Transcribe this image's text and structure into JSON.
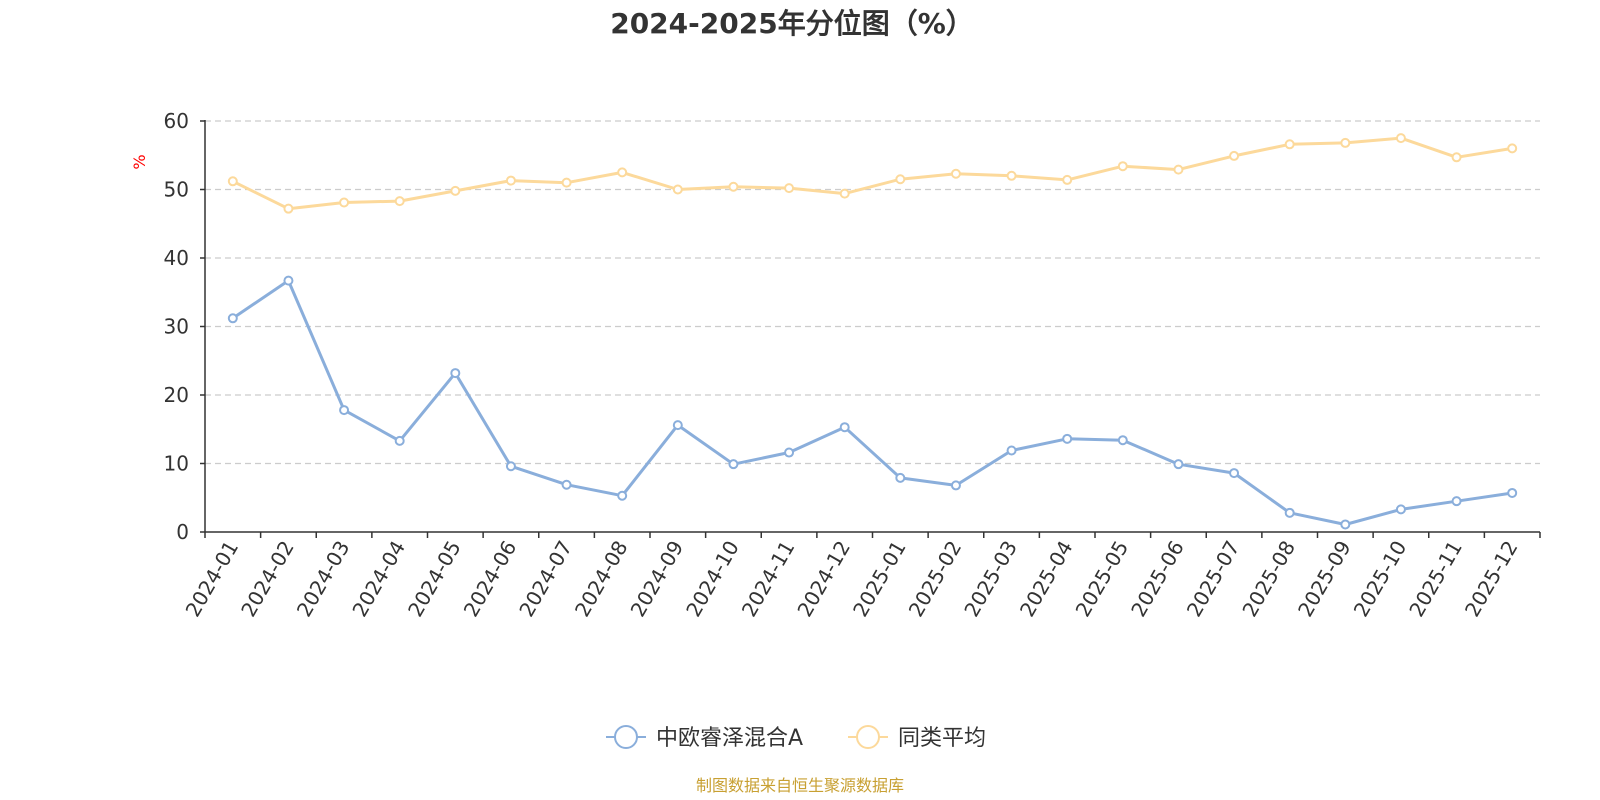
{
  "colors": {
    "series1": "#8aaedb",
    "series2": "#fcd99b",
    "axis": "#333333",
    "grid": "#cccccc",
    "unit": "#ff0000",
    "source": "#c8a032"
  },
  "chart_data": {
    "type": "line",
    "title": "2024-2025年分位图（%）",
    "ylabel": "%",
    "ylim": [
      0,
      60
    ],
    "yticks": [
      0,
      10,
      20,
      30,
      40,
      50,
      60
    ],
    "grid": true,
    "legend_position": "bottom-center",
    "categories": [
      "2024-01",
      "2024-02",
      "2024-03",
      "2024-04",
      "2024-05",
      "2024-06",
      "2024-07",
      "2024-08",
      "2024-09",
      "2024-10",
      "2024-11",
      "2024-12",
      "2025-01",
      "2025-02",
      "2025-03",
      "2025-04",
      "2025-05",
      "2025-06",
      "2025-07",
      "2025-08",
      "2025-09",
      "2025-10",
      "2025-11",
      "2025-12"
    ],
    "series": [
      {
        "name": "中欧睿泽混合A",
        "values": [
          31.2,
          36.7,
          17.8,
          13.3,
          23.2,
          9.6,
          6.9,
          5.3,
          15.6,
          9.9,
          11.6,
          15.3,
          7.9,
          6.8,
          11.9,
          13.6,
          13.4,
          9.9,
          8.6,
          2.8,
          1.1,
          3.3,
          4.5,
          5.7
        ]
      },
      {
        "name": "同类平均",
        "values": [
          51.2,
          47.2,
          48.1,
          48.3,
          49.8,
          51.3,
          51.0,
          52.5,
          50.0,
          50.4,
          50.2,
          49.4,
          51.5,
          52.3,
          52.0,
          51.4,
          53.4,
          52.9,
          54.9,
          56.6,
          56.8,
          57.5,
          54.7,
          56.0
        ]
      }
    ]
  },
  "source_text": "制图数据来自恒生聚源数据库"
}
